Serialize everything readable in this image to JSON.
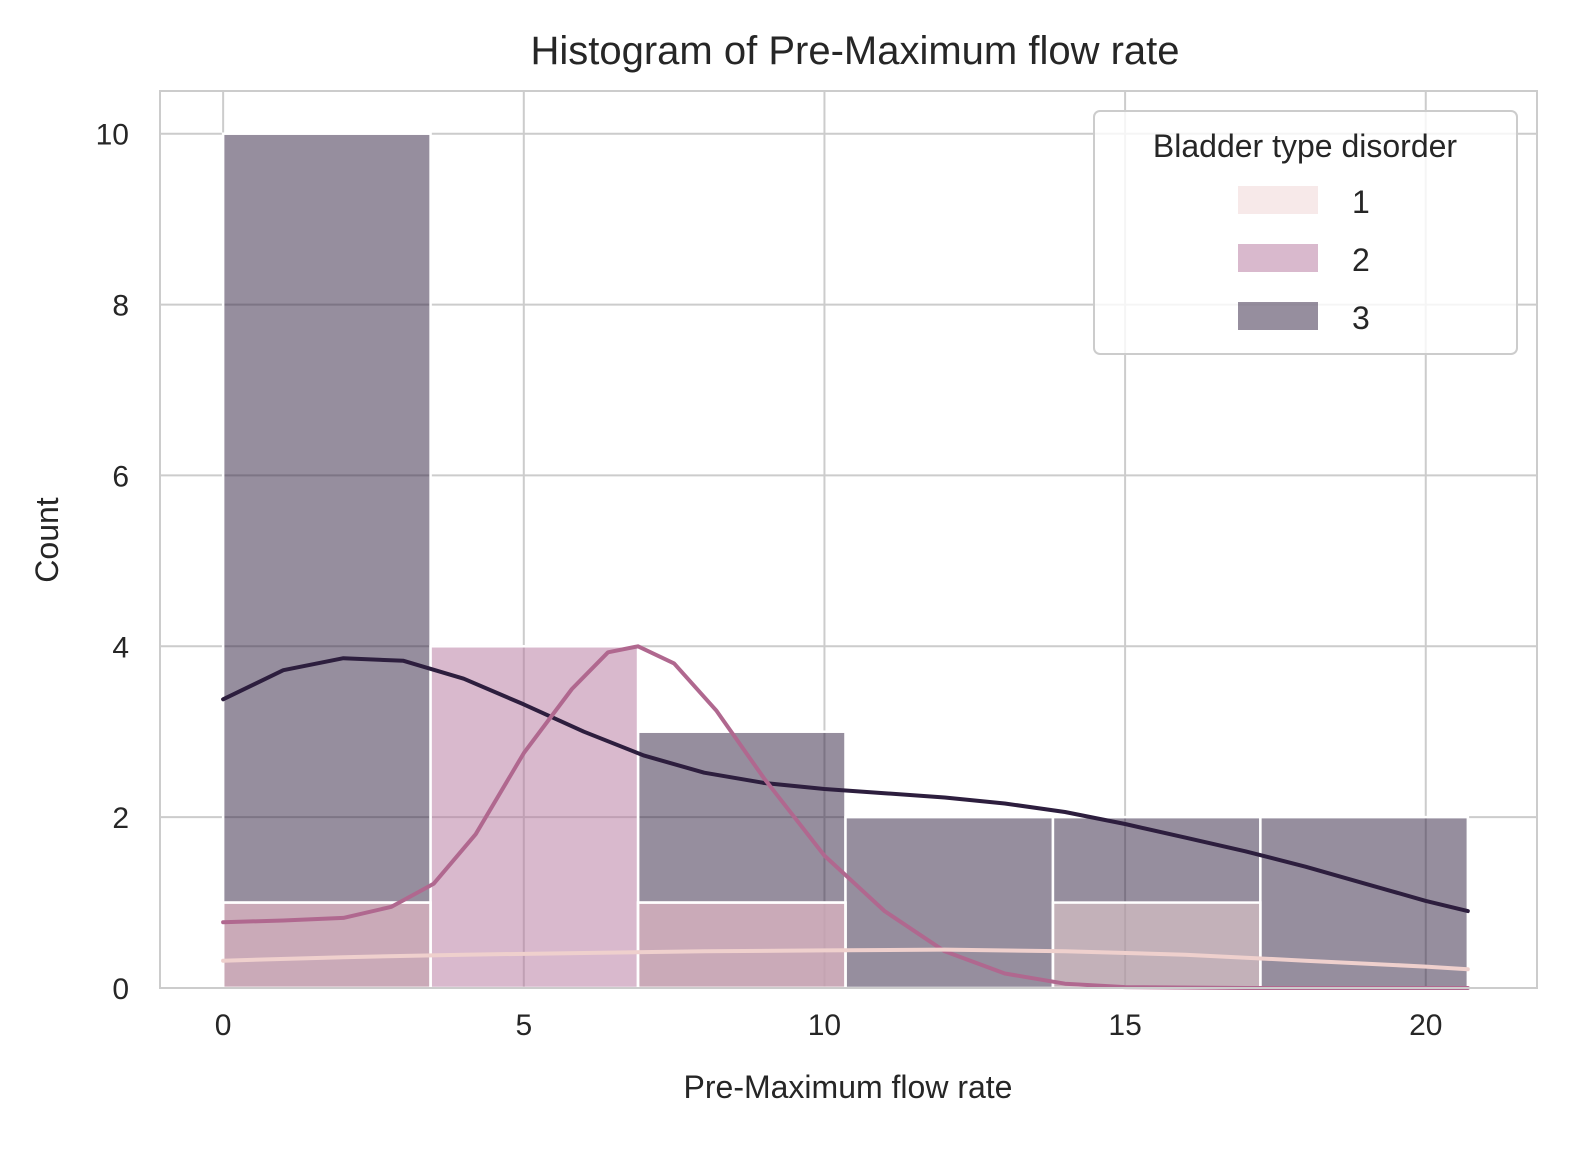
{
  "chart_data": {
    "type": "histogram",
    "title": "Histogram of Pre-Maximum flow rate",
    "xlabel": "Pre-Maximum flow rate",
    "ylabel": "Count",
    "xlim": [
      -1.05,
      21.85
    ],
    "ylim": [
      0,
      10.5
    ],
    "xticks": [
      0,
      5,
      10,
      15,
      20
    ],
    "yticks": [
      0,
      2,
      4,
      6,
      8,
      10
    ],
    "grid": true,
    "bin_edges": [
      0,
      3.45,
      6.9,
      10.35,
      13.8,
      17.25,
      20.7
    ],
    "legend": {
      "title": "Bladder type disorder",
      "position": "top-right"
    },
    "series": [
      {
        "name": "1",
        "color": "#efd3d3",
        "line_color": "#efd0cd",
        "counts": [
          1,
          0,
          1,
          0,
          1,
          0
        ],
        "kde": [
          [
            0,
            0.32
          ],
          [
            2,
            0.36
          ],
          [
            4,
            0.39
          ],
          [
            6,
            0.41
          ],
          [
            8,
            0.43
          ],
          [
            10,
            0.44
          ],
          [
            12,
            0.45
          ],
          [
            14,
            0.43
          ],
          [
            16,
            0.39
          ],
          [
            18,
            0.32
          ],
          [
            20,
            0.25
          ],
          [
            20.7,
            0.22
          ]
        ]
      },
      {
        "name": "2",
        "color": "#b3739b",
        "line_color": "#b0688f",
        "counts": [
          1,
          4,
          1,
          0,
          0,
          0
        ],
        "kde": [
          [
            0,
            0.77
          ],
          [
            1,
            0.79
          ],
          [
            2,
            0.82
          ],
          [
            2.8,
            0.95
          ],
          [
            3.5,
            1.22
          ],
          [
            4.2,
            1.8
          ],
          [
            5,
            2.75
          ],
          [
            5.8,
            3.5
          ],
          [
            6.4,
            3.93
          ],
          [
            6.9,
            4.0
          ],
          [
            7.5,
            3.8
          ],
          [
            8.2,
            3.25
          ],
          [
            9,
            2.45
          ],
          [
            10,
            1.55
          ],
          [
            11,
            0.9
          ],
          [
            12,
            0.43
          ],
          [
            13,
            0.17
          ],
          [
            14,
            0.05
          ],
          [
            15,
            0.01
          ],
          [
            17,
            0.0
          ],
          [
            20.7,
            0.0
          ]
        ]
      },
      {
        "name": "3",
        "color": "#2d1e3e",
        "line_color": "#2d1e3e",
        "counts": [
          10,
          0,
          3,
          2,
          2,
          2
        ],
        "kde": [
          [
            0,
            3.38
          ],
          [
            1,
            3.72
          ],
          [
            2,
            3.86
          ],
          [
            3,
            3.83
          ],
          [
            4,
            3.62
          ],
          [
            5,
            3.32
          ],
          [
            6,
            3.0
          ],
          [
            7,
            2.72
          ],
          [
            8,
            2.52
          ],
          [
            9,
            2.4
          ],
          [
            10,
            2.33
          ],
          [
            11,
            2.28
          ],
          [
            12,
            2.23
          ],
          [
            13,
            2.16
          ],
          [
            14,
            2.06
          ],
          [
            15,
            1.92
          ],
          [
            16,
            1.76
          ],
          [
            17,
            1.6
          ],
          [
            18,
            1.42
          ],
          [
            19,
            1.22
          ],
          [
            20,
            1.02
          ],
          [
            20.7,
            0.9
          ]
        ]
      }
    ]
  }
}
